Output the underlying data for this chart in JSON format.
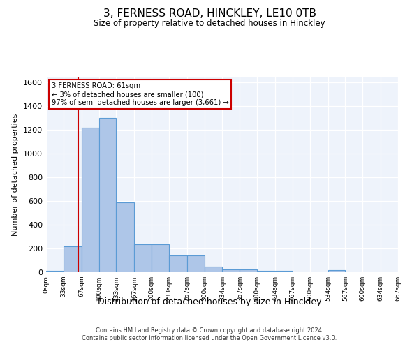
{
  "title": "3, FERNESS ROAD, HINCKLEY, LE10 0TB",
  "subtitle": "Size of property relative to detached houses in Hinckley",
  "xlabel": "Distribution of detached houses by size in Hinckley",
  "ylabel": "Number of detached properties",
  "annotation_line1": "3 FERNESS ROAD: 61sqm",
  "annotation_line2": "← 3% of detached houses are smaller (100)",
  "annotation_line3": "97% of semi-detached houses are larger (3,661) →",
  "footer_line1": "Contains HM Land Registry data © Crown copyright and database right 2024.",
  "footer_line2": "Contains public sector information licensed under the Open Government Licence v3.0.",
  "property_size": 61,
  "bin_edges": [
    0,
    33,
    67,
    100,
    133,
    167,
    200,
    233,
    267,
    300,
    334,
    367,
    400,
    434,
    467,
    500,
    534,
    567,
    600,
    634,
    667
  ],
  "bar_heights": [
    10,
    220,
    1220,
    1300,
    590,
    235,
    235,
    140,
    140,
    47,
    25,
    22,
    10,
    10,
    0,
    0,
    18,
    0,
    0,
    0
  ],
  "bar_color": "#aec6e8",
  "bar_edge_color": "#5b9bd5",
  "vline_color": "#cc0000",
  "annotation_box_color": "#cc0000",
  "background_color": "#eef3fb",
  "ylim": [
    0,
    1650
  ],
  "yticks": [
    0,
    200,
    400,
    600,
    800,
    1000,
    1200,
    1400,
    1600
  ]
}
